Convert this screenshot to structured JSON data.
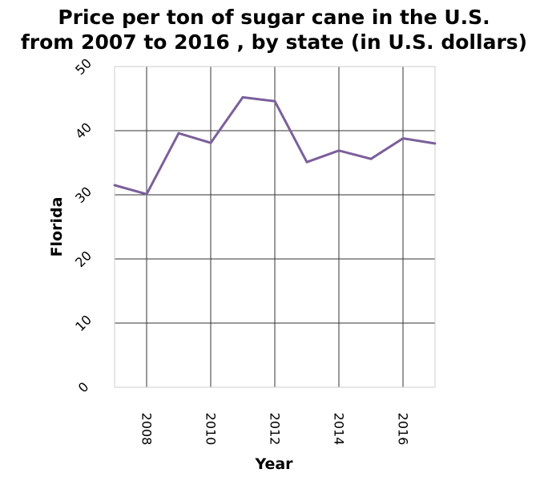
{
  "chart_data": {
    "type": "line",
    "title_lines": [
      "Price per ton of sugar cane in the U.S.",
      "from 2007 to 2016 , by state (in U.S. dollars)"
    ],
    "xlabel": "Year",
    "ylabel": "Florida",
    "xlim": [
      2007,
      2017
    ],
    "ylim": [
      0,
      50
    ],
    "xticks": [
      2008,
      2010,
      2012,
      2014,
      2016
    ],
    "yticks": [
      0,
      10,
      20,
      30,
      40,
      50
    ],
    "grid": true,
    "line_color": "#7b5f9a",
    "series": [
      {
        "x": [
          2007,
          2008,
          2009,
          2010,
          2011,
          2012,
          2013,
          2014,
          2015,
          2016,
          2017
        ],
        "y": [
          31.5,
          30.1,
          39.6,
          38.1,
          45.2,
          44.6,
          35.1,
          36.9,
          35.6,
          38.8,
          38.0
        ]
      }
    ]
  }
}
